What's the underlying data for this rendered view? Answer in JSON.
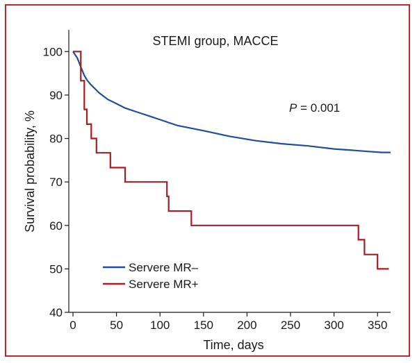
{
  "chart_data": {
    "type": "line",
    "subtype": "kaplan-meier",
    "title": "STEMI group, MACCE",
    "xlabel": "Time, days",
    "ylabel": "Survival probability, %",
    "xlim": [
      0,
      365
    ],
    "ylim": [
      40,
      105
    ],
    "x_ticks": [
      0,
      50,
      100,
      150,
      200,
      250,
      300,
      350
    ],
    "y_ticks": [
      40,
      50,
      60,
      70,
      80,
      90,
      100
    ],
    "grid": false,
    "legend_position": "bottom-left",
    "annotation": {
      "italic": "P",
      "rest": " = 0.001"
    },
    "series": [
      {
        "name": "Servere MR–",
        "color": "#1f4e9a",
        "step": false,
        "x": [
          0,
          5,
          8,
          10,
          13,
          16,
          20,
          25,
          30,
          40,
          50,
          60,
          75,
          90,
          105,
          120,
          150,
          180,
          210,
          240,
          270,
          300,
          320,
          340,
          355,
          365
        ],
        "y": [
          100,
          98.5,
          97,
          96,
          94.5,
          93.5,
          92.5,
          91.5,
          90.5,
          89,
          88,
          87,
          86,
          85,
          84,
          83,
          81.8,
          80.5,
          79.5,
          78.8,
          78.3,
          77.6,
          77.3,
          77,
          76.8,
          76.8
        ]
      },
      {
        "name": "Servere MR+",
        "color": "#a91c22",
        "step": true,
        "x": [
          0,
          9,
          13,
          16,
          21,
          27,
          43,
          60,
          108,
          110,
          136,
          328,
          335,
          350,
          363
        ],
        "y": [
          100,
          93.3,
          86.7,
          83.3,
          80,
          76.7,
          73.3,
          70,
          66.7,
          63.3,
          60,
          56.7,
          53.3,
          50,
          50
        ]
      }
    ]
  }
}
